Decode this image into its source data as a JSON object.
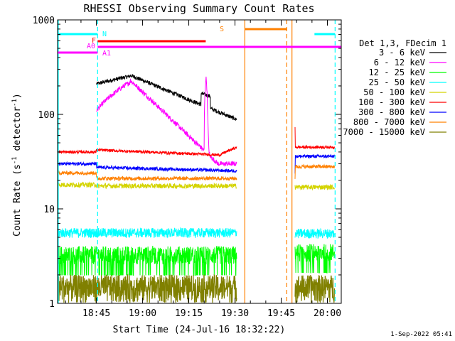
{
  "chart_data": {
    "type": "line",
    "title": "RHESSI Observing Summary Count Rates",
    "xlabel": "Start Time (24-Jul-16 18:32:22)",
    "ylabel": "Count Rate (s",
    "ylabel_sup": "-1",
    "ylabel_rest": " detector",
    "ylabel_sup2": "-1",
    "ylabel_close": ")",
    "yscale": "log",
    "ylim": [
      1,
      1000
    ],
    "xlim_minutes": [
      32.4,
      124.5
    ],
    "x_ticks": [
      {
        "min": 45,
        "label": "18:45"
      },
      {
        "min": 60,
        "label": "19:00"
      },
      {
        "min": 75,
        "label": "19:15"
      },
      {
        "min": 90,
        "label": "19:30"
      },
      {
        "min": 105,
        "label": "19:45"
      },
      {
        "min": 120,
        "label": "20:00"
      }
    ],
    "y_ticks": [
      {
        "value": 1,
        "label": "1"
      },
      {
        "value": 10,
        "label": "10"
      },
      {
        "value": 100,
        "label": "100"
      },
      {
        "value": 1000,
        "label": "1000"
      }
    ],
    "legend_title": "Det 1,3, FDecim 1",
    "legend_position": "right",
    "series": [
      {
        "name": "3 - 6 keV",
        "color": "#000000"
      },
      {
        "name": "6 - 12 keV",
        "color": "#ff00ff"
      },
      {
        "name": "12 - 25 keV",
        "color": "#00ff00"
      },
      {
        "name": "25 - 50 keV",
        "color": "#00ffff"
      },
      {
        "name": "50 - 100 keV",
        "color": "#d4d400"
      },
      {
        "name": "100 - 300 keV",
        "color": "#ff0000"
      },
      {
        "name": "300 - 800 keV",
        "color": "#0000ff"
      },
      {
        "name": "800 - 7000 keV",
        "color": "#ff8000"
      },
      {
        "name": "7000 - 15000 keV",
        "color": "#808000"
      }
    ],
    "flag_bars": [
      {
        "label": "N",
        "color": "#00ffff",
        "segments": [
          [
            32.4,
            45.4
          ],
          [
            115.8,
            122.5
          ]
        ]
      },
      {
        "label": "F",
        "color": "#ff0000",
        "segments": [
          [
            45.4,
            80.5
          ]
        ]
      },
      {
        "label": "A0",
        "color": "#ff00ff",
        "segments": [
          [
            45.4,
            124.5
          ]
        ]
      },
      {
        "label": "A1",
        "color": "#ff00ff",
        "segments": [
          [
            32.4,
            45.4
          ]
        ]
      },
      {
        "label": "S",
        "color": "#ff8000",
        "segments": [
          [
            93.2,
            106.8
          ]
        ]
      }
    ],
    "vertical_markers": [
      {
        "min": 45.4,
        "color": "#00ffff",
        "style": "dashed"
      },
      {
        "min": 93.2,
        "color": "#ff8000",
        "style": "solid"
      },
      {
        "min": 106.8,
        "color": "#ff8000",
        "style": "dashed"
      },
      {
        "min": 108.5,
        "color": "#ff8000",
        "style": "solid"
      },
      {
        "min": 122.5,
        "color": "#00ffff",
        "style": "dashed"
      }
    ],
    "data_gaps_minutes": [
      [
        90.6,
        109.5
      ]
    ],
    "timestamp": "1-Sep-2022 05:41"
  }
}
